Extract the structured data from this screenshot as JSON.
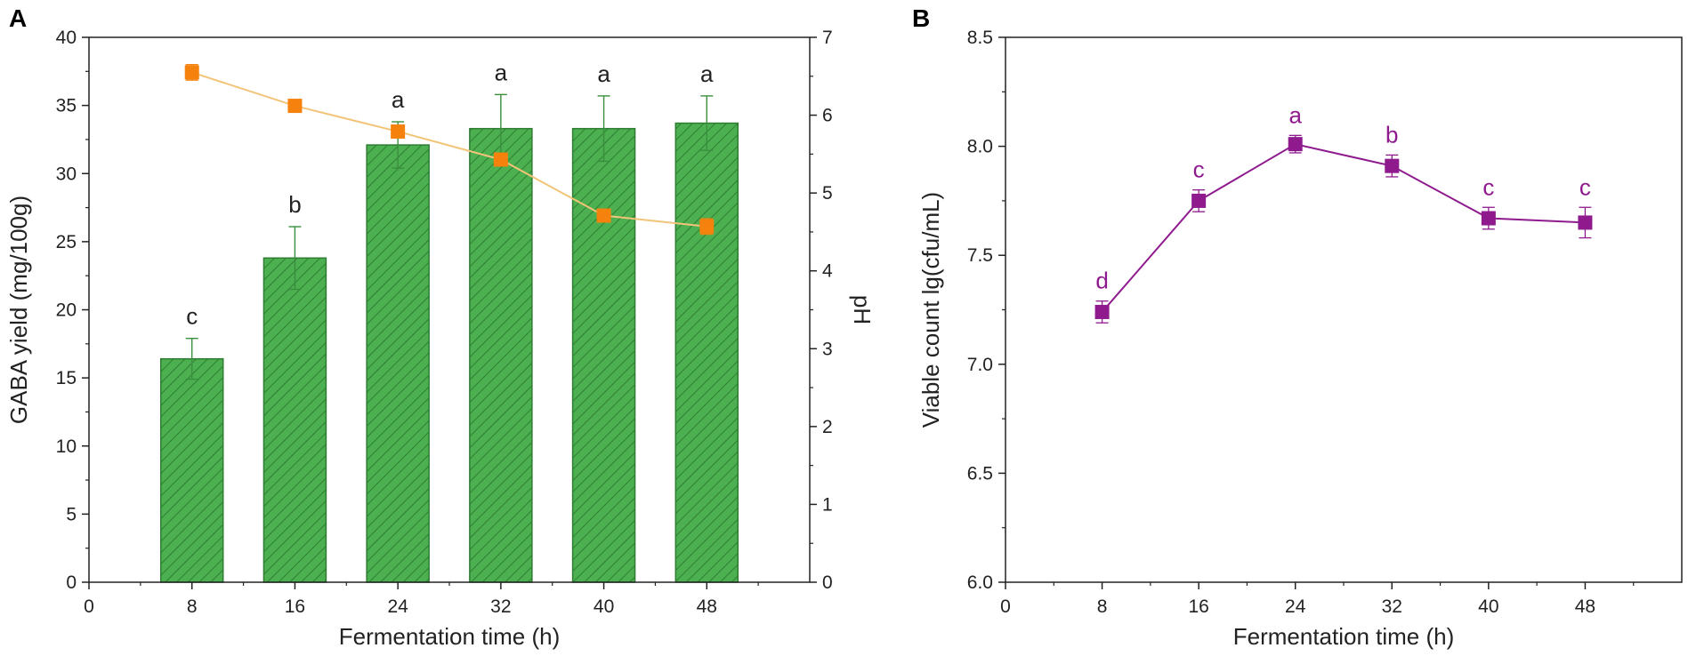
{
  "chart_data": [
    {
      "panel": "A",
      "type": "bar",
      "xlabel": "Fermentation time (h)",
      "ylabel": "GABA yield (mg/100g)",
      "y2label": "pH",
      "xlim": [
        0,
        56
      ],
      "xticks": [
        0,
        8,
        16,
        24,
        32,
        40,
        48
      ],
      "ylim": [
        0,
        40
      ],
      "yticks": [
        0,
        5,
        10,
        15,
        20,
        25,
        30,
        35,
        40
      ],
      "y2lim": [
        0,
        7
      ],
      "y2ticks": [
        0,
        1,
        2,
        3,
        4,
        5,
        6,
        7
      ],
      "x": [
        8,
        16,
        24,
        32,
        40,
        48
      ],
      "series": [
        {
          "name": "GABA yield",
          "kind": "bar",
          "axis": "left",
          "values": [
            16.4,
            23.8,
            32.1,
            33.3,
            33.3,
            33.7
          ],
          "errors": [
            1.5,
            2.3,
            1.7,
            2.5,
            2.4,
            2.0
          ],
          "labels": [
            "c",
            "b",
            "a",
            "a",
            "a",
            "a"
          ],
          "color": "#4caf50",
          "edge_color": "#2e7d32"
        },
        {
          "name": "pH",
          "kind": "line",
          "axis": "right",
          "values": [
            6.55,
            6.12,
            5.79,
            5.43,
            4.71,
            4.57
          ],
          "errors": [
            0.1,
            0.0,
            0.08,
            0.0,
            0.07,
            0.1
          ],
          "color": "#f5820d",
          "line_color": "#f2c478"
        }
      ]
    },
    {
      "panel": "B",
      "type": "line",
      "xlabel": "Fermentation time (h)",
      "ylabel": "Viable count lg(cfu/mL)",
      "xlim": [
        0,
        56
      ],
      "xticks": [
        0,
        8,
        16,
        24,
        32,
        40,
        48
      ],
      "ylim": [
        6.0,
        8.5
      ],
      "yticks": [
        "6.0",
        "6.5",
        "7.0",
        "7.5",
        "8.0",
        "8.5"
      ],
      "x": [
        8,
        16,
        24,
        32,
        40,
        48
      ],
      "series": [
        {
          "name": "Viable count",
          "values": [
            7.24,
            7.75,
            8.01,
            7.91,
            7.67,
            7.65
          ],
          "errors": [
            0.05,
            0.05,
            0.04,
            0.05,
            0.05,
            0.07
          ],
          "labels": [
            "d",
            "c",
            "a",
            "b",
            "c",
            "c"
          ],
          "color": "#8e1a8e"
        }
      ]
    }
  ]
}
